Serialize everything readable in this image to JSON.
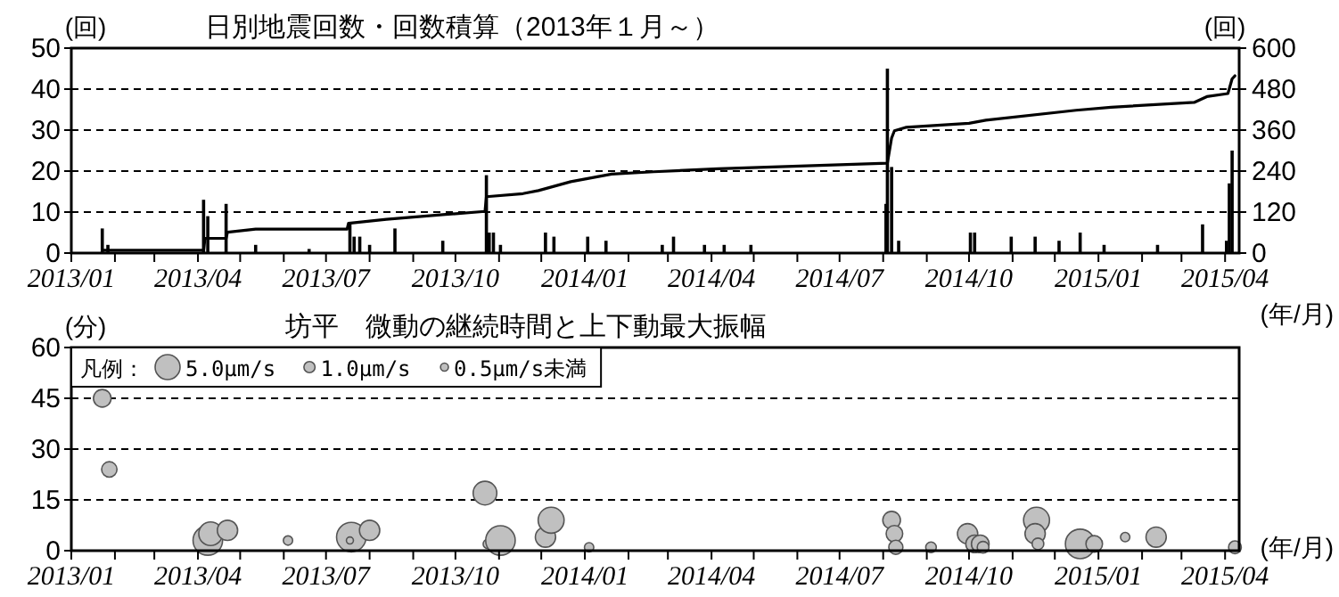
{
  "chart_data": [
    {
      "type": "bar",
      "title": "日別地震回数・回数積算（2013年１月～）",
      "ylabel": "(回)",
      "y2label": "(回)",
      "xlabel": "(年/月)",
      "xlim": [
        "2013-01-01",
        "2015-04-11"
      ],
      "xticks": [
        {
          "value": "2013-01-01",
          "label": "2013/01"
        },
        {
          "value": "2013-02-01",
          "label": null
        },
        {
          "value": "2013-03-01",
          "label": null
        },
        {
          "value": "2013-04-01",
          "label": "2013/04"
        },
        {
          "value": "2013-05-01",
          "label": null
        },
        {
          "value": "2013-06-01",
          "label": null
        },
        {
          "value": "2013-07-01",
          "label": "2013/07"
        },
        {
          "value": "2013-08-01",
          "label": null
        },
        {
          "value": "2013-09-01",
          "label": null
        },
        {
          "value": "2013-10-01",
          "label": "2013/10"
        },
        {
          "value": "2013-11-01",
          "label": null
        },
        {
          "value": "2013-12-01",
          "label": null
        },
        {
          "value": "2014-01-01",
          "label": "2014/01"
        },
        {
          "value": "2014-02-01",
          "label": null
        },
        {
          "value": "2014-03-01",
          "label": null
        },
        {
          "value": "2014-04-01",
          "label": "2014/04"
        },
        {
          "value": "2014-05-01",
          "label": null
        },
        {
          "value": "2014-06-01",
          "label": null
        },
        {
          "value": "2014-07-01",
          "label": "2014/07"
        },
        {
          "value": "2014-08-01",
          "label": null
        },
        {
          "value": "2014-09-01",
          "label": null
        },
        {
          "value": "2014-10-01",
          "label": "2014/10"
        },
        {
          "value": "2014-11-01",
          "label": null
        },
        {
          "value": "2014-12-01",
          "label": null
        },
        {
          "value": "2015-01-01",
          "label": "2015/01"
        },
        {
          "value": "2015-02-01",
          "label": null
        },
        {
          "value": "2015-03-01",
          "label": null
        },
        {
          "value": "2015-04-01",
          "label": "2015/04"
        }
      ],
      "ylim": [
        0,
        50
      ],
      "yticks": [
        0,
        10,
        20,
        30,
        40,
        50
      ],
      "y2lim": [
        0,
        600
      ],
      "y2ticks": [
        0,
        120,
        240,
        360,
        480,
        600
      ],
      "grid": "y",
      "series": [
        {
          "color": "#000000",
          "x": [
            "2013-01-23",
            "2013-01-27",
            "2013-04-05",
            "2013-04-08",
            "2013-04-21",
            "2013-05-12",
            "2013-06-19",
            "2013-07-18",
            "2013-07-21",
            "2013-07-25",
            "2013-08-01",
            "2013-08-19",
            "2013-09-22",
            "2013-10-23",
            "2013-10-25",
            "2013-10-28",
            "2013-11-02",
            "2013-12-04",
            "2013-12-10",
            "2014-01-03",
            "2014-01-16",
            "2014-02-25",
            "2014-03-05",
            "2014-03-27",
            "2014-04-10",
            "2014-04-29",
            "2014-08-03",
            "2014-08-04",
            "2014-08-07",
            "2014-08-12",
            "2014-10-02",
            "2014-10-05",
            "2014-10-31",
            "2014-11-17",
            "2014-12-04",
            "2014-12-19",
            "2015-01-05",
            "2015-02-12",
            "2015-03-16",
            "2015-04-02",
            "2015-04-04",
            "2015-04-06"
          ],
          "values": [
            6,
            2,
            13,
            9,
            12,
            2,
            1,
            7,
            4,
            4,
            2,
            6,
            3,
            19,
            5,
            5,
            2,
            5,
            4,
            4,
            3,
            2,
            4,
            2,
            2,
            2,
            12,
            45,
            21,
            3,
            5,
            5,
            4,
            4,
            3,
            5,
            2,
            2,
            7,
            3,
            17,
            25
          ]
        },
        {
          "type": "line",
          "axis": "y2",
          "color": "#000000",
          "x": [
            "2013-01-23",
            "2013-04-05",
            "2013-04-06",
            "2013-04-21",
            "2013-04-22",
            "2013-05-12",
            "2013-07-16",
            "2013-07-17",
            "2013-08-13",
            "2013-09-24",
            "2013-10-22",
            "2013-10-23",
            "2013-11-18",
            "2013-11-29",
            "2013-12-22",
            "2014-01-20",
            "2014-02-19",
            "2014-04-06",
            "2014-08-04",
            "2014-08-07",
            "2014-08-09",
            "2014-08-17",
            "2014-10-01",
            "2014-10-13",
            "2014-12-16",
            "2015-01-10",
            "2015-03-10",
            "2015-03-19",
            "2015-04-03",
            "2015-04-06",
            "2015-04-08"
          ],
          "values": [
            8,
            8,
            43,
            43,
            61,
            70,
            70,
            87,
            99,
            113,
            122,
            165,
            174,
            183,
            209,
            231,
            238,
            247,
            263,
            337,
            358,
            368,
            380,
            389,
            418,
            427,
            441,
            458,
            467,
            510,
            519
          ]
        }
      ]
    },
    {
      "type": "bubble",
      "title": "坊平　微動の継続時間と上下動最大振幅",
      "ylabel": "(分)",
      "xlabel": "(年/月)",
      "xlim": [
        "2013-01-01",
        "2015-04-11"
      ],
      "xticks": [
        {
          "value": "2013-01-01",
          "label": "2013/01"
        },
        {
          "value": "2013-02-01",
          "label": null
        },
        {
          "value": "2013-03-01",
          "label": null
        },
        {
          "value": "2013-04-01",
          "label": "2013/04"
        },
        {
          "value": "2013-05-01",
          "label": null
        },
        {
          "value": "2013-06-01",
          "label": null
        },
        {
          "value": "2013-07-01",
          "label": "2013/07"
        },
        {
          "value": "2013-08-01",
          "label": null
        },
        {
          "value": "2013-09-01",
          "label": null
        },
        {
          "value": "2013-10-01",
          "label": "2013/10"
        },
        {
          "value": "2013-11-01",
          "label": null
        },
        {
          "value": "2013-12-01",
          "label": null
        },
        {
          "value": "2014-01-01",
          "label": "2014/01"
        },
        {
          "value": "2014-02-01",
          "label": null
        },
        {
          "value": "2014-03-01",
          "label": null
        },
        {
          "value": "2014-04-01",
          "label": "2014/04"
        },
        {
          "value": "2014-05-01",
          "label": null
        },
        {
          "value": "2014-06-01",
          "label": null
        },
        {
          "value": "2014-07-01",
          "label": "2014/07"
        },
        {
          "value": "2014-08-01",
          "label": null
        },
        {
          "value": "2014-09-01",
          "label": null
        },
        {
          "value": "2014-10-01",
          "label": "2014/10"
        },
        {
          "value": "2014-11-01",
          "label": null
        },
        {
          "value": "2014-12-01",
          "label": null
        },
        {
          "value": "2015-01-01",
          "label": "2015/01"
        },
        {
          "value": "2015-02-01",
          "label": null
        },
        {
          "value": "2015-03-01",
          "label": null
        },
        {
          "value": "2015-04-01",
          "label": "2015/04"
        }
      ],
      "ylim": [
        0,
        60
      ],
      "yticks": [
        0,
        15,
        30,
        45,
        60
      ],
      "grid": "y",
      "legend_title": "凡例：",
      "size_legend": [
        {
          "value": 5.0,
          "label": "5.0μm/s"
        },
        {
          "value": 1.0,
          "label": "1.0μm/s"
        },
        {
          "value": 0.5,
          "label": "0.5μm/s未満"
        }
      ],
      "series": [
        {
          "color": "#c0c0c0",
          "x": [
            "2013-01-23",
            "2013-01-28",
            "2013-04-08",
            "2013-04-10",
            "2013-04-22",
            "2013-06-04",
            "2013-07-19",
            "2013-07-18",
            "2013-08-01",
            "2013-10-22",
            "2013-10-24",
            "2013-11-02",
            "2013-12-04",
            "2013-12-08",
            "2014-01-04",
            "2014-08-07",
            "2014-08-09",
            "2014-08-10",
            "2014-09-04",
            "2014-09-30",
            "2014-10-05",
            "2014-10-09",
            "2014-10-11",
            "2014-11-18",
            "2014-11-17",
            "2014-11-19",
            "2014-12-19",
            "2014-12-29",
            "2015-01-20",
            "2015-02-11",
            "2015-04-08"
          ],
          "values": [
            45,
            24,
            3,
            5,
            6,
            3,
            4,
            3,
            6,
            17,
            2,
            3,
            4,
            9,
            1,
            9,
            5,
            1,
            1,
            5,
            2,
            2,
            1,
            9,
            5,
            2,
            2,
            2,
            4,
            4,
            1
          ],
          "sizes": [
            2.5,
            1.9,
            7.0,
            4.5,
            3.3,
            0.7,
            7.0,
            0.4,
            3.3,
            4.5,
            0.7,
            7.0,
            3.3,
            5.4,
            0.7,
            2.5,
            2.2,
            1.6,
            0.9,
            3.3,
            2.5,
            2.5,
            1.1,
            5.4,
            3.3,
            1.1,
            7.0,
            2.2,
            0.7,
            3.3,
            1.3
          ]
        }
      ]
    }
  ]
}
